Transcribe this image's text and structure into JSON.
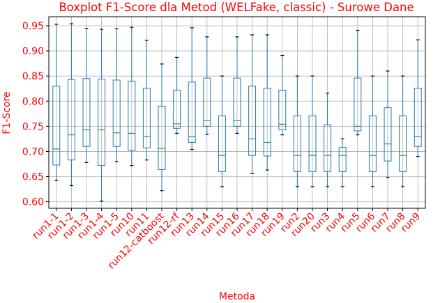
{
  "colors": {
    "text": "#ff0000",
    "box": "#1f77b4",
    "median": "#2ca02c",
    "whisker_cap": "#000000",
    "grid": "#b0b0b0"
  },
  "chart_data": {
    "type": "boxplot",
    "title": "Boxplot F1-Score dla Metod (WELFake, classic) - Surowe Dane",
    "xlabel": "Metoda",
    "ylabel": "F1-Score",
    "ylim": [
      0.587,
      0.968
    ],
    "yticks": [
      0.6,
      0.65,
      0.7,
      0.75,
      0.8,
      0.85,
      0.9,
      0.95
    ],
    "ytick_labels": [
      "0.60",
      "0.65",
      "0.70",
      "0.75",
      "0.80",
      "0.85",
      "0.90",
      "0.95"
    ],
    "grid": true,
    "categories": [
      "run1-1",
      "run1-2",
      "run1-3",
      "run1-4",
      "run1-5",
      "run10",
      "run11",
      "run12-catboost",
      "run12-rf",
      "run13",
      "run14",
      "run15",
      "run16",
      "run17",
      "run18",
      "run19",
      "run2",
      "run20",
      "run3",
      "run4",
      "run5",
      "run6",
      "run7",
      "run8",
      "run9"
    ],
    "boxes": [
      {
        "whislo": 0.642,
        "q1": 0.673,
        "med": 0.705,
        "q3": 0.83,
        "whishi": 0.953
      },
      {
        "whislo": 0.632,
        "q1": 0.683,
        "med": 0.733,
        "q3": 0.843,
        "whishi": 0.954
      },
      {
        "whislo": 0.678,
        "q1": 0.71,
        "med": 0.743,
        "q3": 0.845,
        "whishi": 0.945
      },
      {
        "whislo": 0.601,
        "q1": 0.672,
        "med": 0.743,
        "q3": 0.844,
        "whishi": 0.943
      },
      {
        "whislo": 0.68,
        "q1": 0.71,
        "med": 0.737,
        "q3": 0.842,
        "whishi": 0.944
      },
      {
        "whislo": 0.672,
        "q1": 0.702,
        "med": 0.736,
        "q3": 0.84,
        "whishi": 0.947
      },
      {
        "whislo": 0.683,
        "q1": 0.707,
        "med": 0.73,
        "q3": 0.826,
        "whishi": 0.921
      },
      {
        "whislo": 0.622,
        "q1": 0.664,
        "med": 0.706,
        "q3": 0.79,
        "whishi": 0.874
      },
      {
        "whislo": 0.736,
        "q1": 0.746,
        "med": 0.755,
        "q3": 0.822,
        "whishi": 0.887
      },
      {
        "whislo": 0.704,
        "q1": 0.718,
        "med": 0.73,
        "q3": 0.838,
        "whishi": 0.946
      },
      {
        "whislo": 0.734,
        "q1": 0.75,
        "med": 0.762,
        "q3": 0.846,
        "whishi": 0.928
      },
      {
        "whislo": 0.63,
        "q1": 0.66,
        "med": 0.692,
        "q3": 0.771,
        "whishi": 0.85
      },
      {
        "whislo": 0.736,
        "q1": 0.75,
        "med": 0.762,
        "q3": 0.846,
        "whishi": 0.928
      },
      {
        "whislo": 0.656,
        "q1": 0.692,
        "med": 0.725,
        "q3": 0.83,
        "whishi": 0.932
      },
      {
        "whislo": 0.663,
        "q1": 0.691,
        "med": 0.718,
        "q3": 0.826,
        "whishi": 0.932
      },
      {
        "whislo": 0.733,
        "q1": 0.743,
        "med": 0.754,
        "q3": 0.822,
        "whishi": 0.891
      },
      {
        "whislo": 0.63,
        "q1": 0.66,
        "med": 0.692,
        "q3": 0.771,
        "whishi": 0.85
      },
      {
        "whislo": 0.63,
        "q1": 0.66,
        "med": 0.692,
        "q3": 0.771,
        "whishi": 0.85
      },
      {
        "whislo": 0.63,
        "q1": 0.66,
        "med": 0.692,
        "q3": 0.753,
        "whishi": 0.816
      },
      {
        "whislo": 0.63,
        "q1": 0.66,
        "med": 0.692,
        "q3": 0.708,
        "whishi": 0.725
      },
      {
        "whislo": 0.733,
        "q1": 0.741,
        "med": 0.75,
        "q3": 0.846,
        "whishi": 0.941
      },
      {
        "whislo": 0.63,
        "q1": 0.66,
        "med": 0.692,
        "q3": 0.771,
        "whishi": 0.85
      },
      {
        "whislo": 0.648,
        "q1": 0.681,
        "med": 0.715,
        "q3": 0.787,
        "whishi": 0.86
      },
      {
        "whislo": 0.63,
        "q1": 0.66,
        "med": 0.692,
        "q3": 0.771,
        "whishi": 0.85
      },
      {
        "whislo": 0.69,
        "q1": 0.71,
        "med": 0.73,
        "q3": 0.826,
        "whishi": 0.922
      }
    ]
  }
}
